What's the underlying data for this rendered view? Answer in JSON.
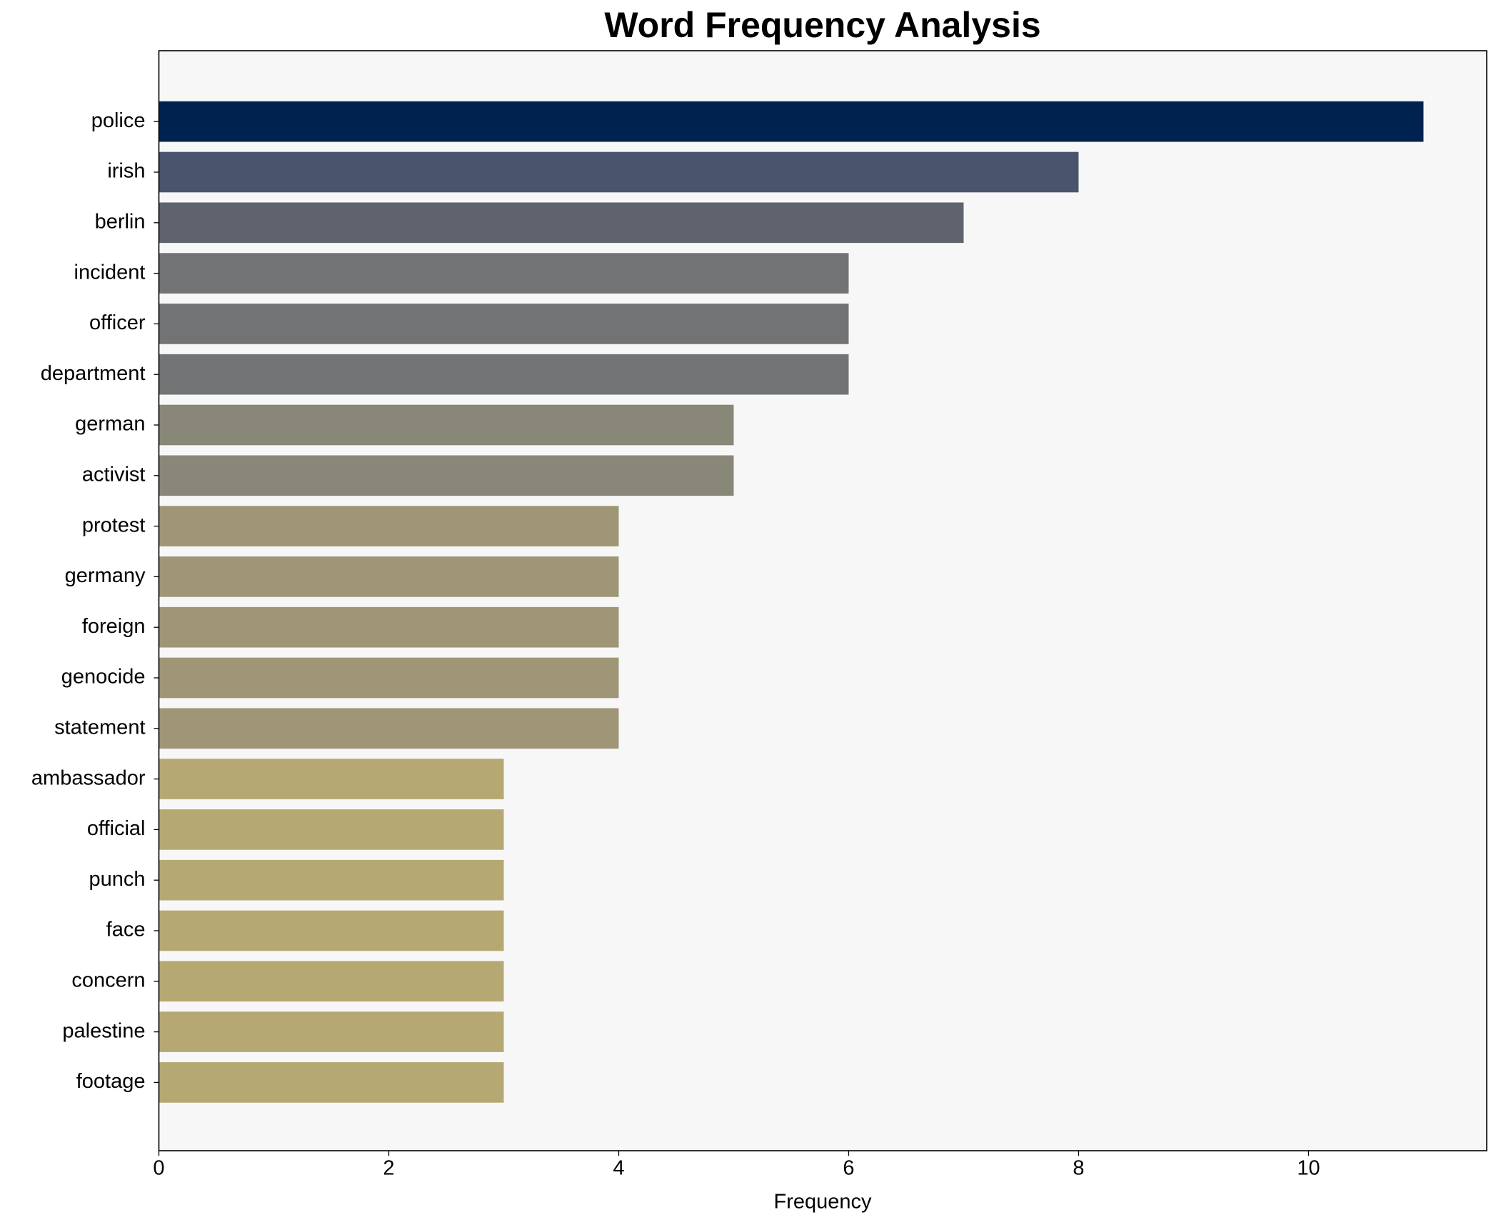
{
  "chart_data": {
    "type": "barh",
    "title": "Word Frequency Analysis",
    "x_label": "Frequency",
    "categories": [
      "police",
      "irish",
      "berlin",
      "incident",
      "officer",
      "department",
      "german",
      "activist",
      "protest",
      "germany",
      "foreign",
      "genocide",
      "statement",
      "ambassador",
      "official",
      "punch",
      "face",
      "concern",
      "palestine",
      "footage"
    ],
    "values": [
      11,
      8,
      7,
      6,
      6,
      6,
      5,
      5,
      4,
      4,
      4,
      4,
      4,
      3,
      3,
      3,
      3,
      3,
      3,
      3
    ],
    "colors": [
      "#00224e",
      "#4a546d",
      "#5f636e",
      "#727374",
      "#727374",
      "#727374",
      "#898778",
      "#898778",
      "#9f9677",
      "#9f9677",
      "#9f9677",
      "#9f9677",
      "#9f9677",
      "#b5a872",
      "#b5a872",
      "#b5a872",
      "#b5a872",
      "#b5a872",
      "#b5a872",
      "#b5a872"
    ],
    "xlim": [
      0,
      11.55
    ],
    "xticks": [
      0,
      2,
      4,
      6,
      8,
      10
    ],
    "grid": false
  }
}
